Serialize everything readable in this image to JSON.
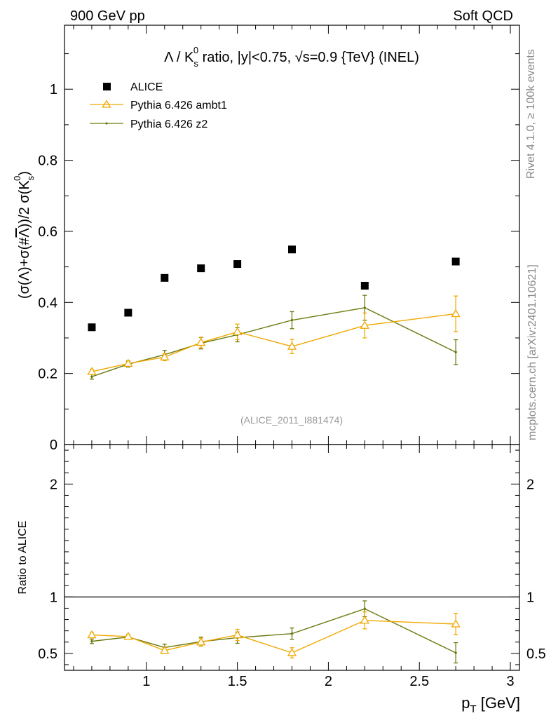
{
  "header": {
    "left": "900 GeV pp",
    "right": "Soft QCD"
  },
  "side_labels": {
    "rivet": "Rivet 4.1.0, ≥ 100k events",
    "mcplots": "mcplots.cern.ch [arXiv:2401.10621]"
  },
  "colors": {
    "alice": "#000000",
    "ambt1": "#f0a800",
    "z2": "#6b7a0f",
    "watermark": "#999999"
  },
  "chart_data": [
    {
      "type": "scatter",
      "title": "Λ / K_s^0 ratio, |y|<0.75, √s=0.9 {TeV} (INEL)",
      "title_parts": {
        "prefix": "Λ / K",
        "sub": "s",
        "sup": "0",
        "rest": " ratio, |y|<0.75, √s=0.9 {TeV} (INEL)"
      },
      "ylabel": "(σ(Λ)+σ(#bar{Λ}))/2 σ(K_s^0)",
      "ylabel_parts": {
        "main": "(σ(Λ)+σ(#",
        "bar": "Λ",
        "mid": "))/2 σ(K",
        "sub": "s",
        "sup": "0",
        "end": ")"
      },
      "xlim": [
        0.55,
        3.05
      ],
      "ylim": [
        0,
        1.18
      ],
      "yticks": [
        0,
        0.2,
        0.4,
        0.6,
        0.8,
        1
      ],
      "ytick_labels": [
        "0",
        "0.2",
        "0.4",
        "0.6",
        "0.8",
        "1"
      ],
      "watermark": "(ALICE_2011_I881474)",
      "legend_position": "top-left",
      "series": [
        {
          "name": "ALICE",
          "marker": "square",
          "color": "#000000",
          "x": [
            0.7,
            0.9,
            1.1,
            1.3,
            1.5,
            1.8,
            2.2,
            2.7
          ],
          "y": [
            0.33,
            0.371,
            0.469,
            0.496,
            0.508,
            0.549,
            0.447,
            0.515
          ]
        },
        {
          "name": "Pythia 6.426 ambt1",
          "marker": "triangle",
          "color": "#f0a800",
          "x": [
            0.7,
            0.9,
            1.1,
            1.3,
            1.5,
            1.8,
            2.2,
            2.7
          ],
          "y": [
            0.205,
            0.228,
            0.246,
            0.287,
            0.317,
            0.276,
            0.335,
            0.368
          ],
          "err": [
            0.007,
            0.008,
            0.01,
            0.015,
            0.022,
            0.02,
            0.035,
            0.05
          ]
        },
        {
          "name": "Pythia 6.426 z2",
          "marker": "dot",
          "color": "#6b7a0f",
          "x": [
            0.7,
            0.9,
            1.1,
            1.3,
            1.5,
            1.8,
            2.2,
            2.7
          ],
          "y": [
            0.191,
            0.226,
            0.253,
            0.285,
            0.309,
            0.35,
            0.385,
            0.26
          ],
          "err": [
            0.007,
            0.008,
            0.012,
            0.016,
            0.02,
            0.024,
            0.035,
            0.035
          ]
        }
      ]
    },
    {
      "type": "scatter",
      "ylabel": "Ratio to ALICE",
      "xlabel": "p_T [GeV]",
      "xlabel_parts": {
        "main": "p",
        "sub": "T",
        "rest": " [GeV]"
      },
      "xlim": [
        0.55,
        3.05
      ],
      "ylim": [
        0.35,
        2.35
      ],
      "reference_line": 1,
      "yticks": [
        0.5,
        1,
        2
      ],
      "ytick_labels": [
        "0.5",
        "1",
        "2"
      ],
      "xticks": [
        1,
        1.5,
        2,
        2.5,
        3
      ],
      "xtick_labels": [
        "1",
        "1.5",
        "2",
        "2.5",
        "3"
      ],
      "series": [
        {
          "name": "Pythia 6.426 ambt1",
          "color": "#f0a800",
          "x": [
            0.7,
            0.9,
            1.1,
            1.3,
            1.5,
            1.8,
            2.2,
            2.7
          ],
          "y": [
            0.663,
            0.649,
            0.525,
            0.6,
            0.663,
            0.505,
            0.792,
            0.76
          ],
          "err": [
            0.02,
            0.02,
            0.025,
            0.035,
            0.05,
            0.045,
            0.075,
            0.095
          ]
        },
        {
          "name": "Pythia 6.426 z2",
          "color": "#6b7a0f",
          "x": [
            0.7,
            0.9,
            1.1,
            1.3,
            1.5,
            1.8,
            2.2,
            2.7
          ],
          "y": [
            0.607,
            0.645,
            0.552,
            0.604,
            0.639,
            0.675,
            0.895,
            0.505
          ],
          "err": [
            0.02,
            0.02,
            0.03,
            0.04,
            0.05,
            0.05,
            0.07,
            0.09
          ]
        }
      ]
    }
  ]
}
